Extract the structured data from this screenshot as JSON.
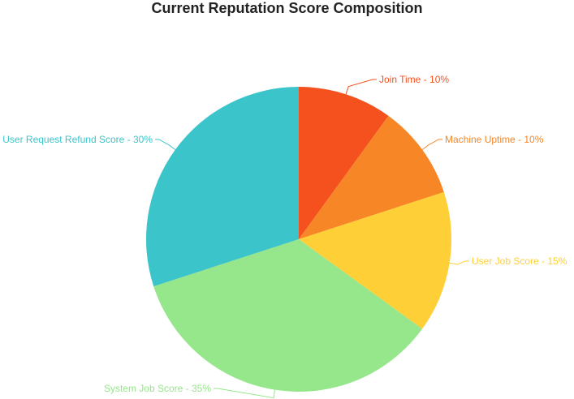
{
  "chart_data": {
    "type": "pie",
    "title": "Current Reputation Score Composition",
    "slices": [
      {
        "label": "Join Time - 10%",
        "value": 10,
        "color": "#f4511e"
      },
      {
        "label": "Machine Uptime - 10%",
        "value": 10,
        "color": "#f68626"
      },
      {
        "label": "User Job Score - 15%",
        "value": 15,
        "color": "#fecf37"
      },
      {
        "label": "System Job Score - 35%",
        "value": 35,
        "color": "#96e68b"
      },
      {
        "label": "User Request Refund Score - 30%",
        "value": 30,
        "color": "#3bc4c9"
      }
    ],
    "start_angle_deg": 0,
    "direction": "clockwise",
    "legend": "none"
  }
}
